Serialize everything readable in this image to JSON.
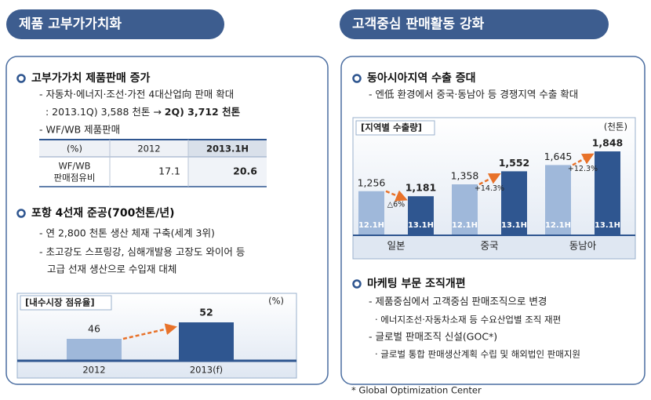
{
  "left": {
    "header": "제품 고부가가치화",
    "sections": [
      {
        "title": "고부가가치 제품판매 증가",
        "lines": [
          "- 자동차·에너지·조선·가전 4대산업向 판매 확대"
        ],
        "detail": [
          ": 2013.1Q) 3,588 천톤 → ",
          "2Q) 3,712 천톤"
        ],
        "sub": "- WF/WB 제품판매"
      },
      {
        "title": "포항 4선재 준공(700천톤/년)",
        "lines": [
          "- 연 2,800 천톤 생산 체재 구축(세계 3위)",
          "- 초고강도 스프링강, 심해개발용 고장도 와이어 등",
          "고급 선재 생산으로 수입재 대체"
        ]
      }
    ],
    "table": {
      "header": [
        "(%)",
        "2012",
        "2013.1H"
      ],
      "rows": [
        {
          "label": [
            "WF/WB",
            "판매점유비"
          ],
          "values": [
            17.1,
            20.6
          ]
        }
      ]
    }
  },
  "right": {
    "header": "고객중심 판매활동 강화",
    "sections": [
      {
        "title": "동아시아지역 수출 증대",
        "lines": [
          "- 엔低 환경에서 중국·동남아 등 경쟁지역 수출 확대"
        ]
      },
      {
        "title": "마케팅 부문 조직개편",
        "lines": [
          "- 제품중심에서 고객중심 판매조직으로 변경",
          "· 에너지조선·자동차소재 등 수요산업별 조직 재편",
          "- 글로벌 판매조직 신설(GOC*)",
          "· 글로벌 통합 판매생산계획 수립 및 해외법인 판매지원"
        ]
      }
    ]
  },
  "chart_data": [
    {
      "type": "bar",
      "title": "[내수시장 점유율]",
      "unit": "(%)",
      "categories": [
        "2012",
        "2013(f)"
      ],
      "values": [
        46,
        52
      ],
      "colors": [
        "#9fb8da",
        "#2f5690"
      ],
      "ylim": [
        38,
        56
      ]
    },
    {
      "type": "bar",
      "title": "[지역별 수출량]",
      "unit": "(천톤)",
      "categories": [
        "일본",
        "중국",
        "동남아"
      ],
      "series": [
        {
          "name": "12.1H",
          "color": "#9fb8da",
          "values": [
            1256,
            1358,
            1645
          ],
          "value_labels": [
            "1,256",
            "1,358",
            "1,645"
          ]
        },
        {
          "name": "13.1H",
          "color": "#2f5690",
          "values": [
            1181,
            1552,
            1848
          ],
          "value_labels": [
            "1,181",
            "1,552",
            "1,848"
          ]
        }
      ],
      "annotations": [
        "△6%",
        "+14.3%",
        "+12.3%"
      ],
      "ylim": [
        600,
        2000
      ]
    }
  ],
  "footnote": "* Global Optimization Center"
}
